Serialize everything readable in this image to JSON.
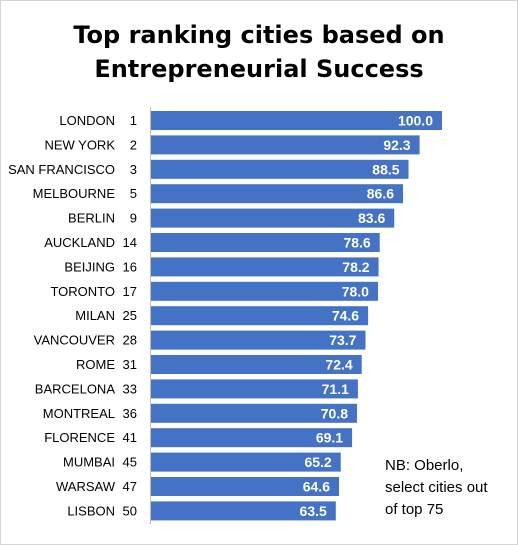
{
  "chart_data": {
    "type": "bar",
    "orientation": "horizontal",
    "title_lines": [
      "Top ranking cities based on",
      "Entrepreneurial Success"
    ],
    "categories": [
      "LONDON",
      "NEW YORK",
      "SAN FRANCISCO",
      "MELBOURNE",
      "BERLIN",
      "AUCKLAND",
      "BEIJING",
      "TORONTO",
      "MILAN",
      "VANCOUVER",
      "ROME",
      "BARCELONA",
      "MONTREAL",
      "FLORENCE",
      "MUMBAI",
      "WARSAW",
      "LISBON"
    ],
    "ranks": [
      "1",
      "2",
      "3",
      "5",
      "9",
      "14",
      "16",
      "17",
      "25",
      "28",
      "31",
      "33",
      "36",
      "41",
      "45",
      "47",
      "50"
    ],
    "values": [
      100.0,
      92.3,
      88.5,
      86.6,
      83.6,
      78.6,
      78.2,
      78.0,
      74.6,
      73.7,
      72.4,
      71.1,
      70.8,
      69.1,
      65.2,
      64.6,
      63.5
    ],
    "value_labels": [
      "100.0",
      "92.3",
      "88.5",
      "86.6",
      "83.6",
      "78.6",
      "78.2",
      "78.0",
      "74.6",
      "73.7",
      "72.4",
      "71.1",
      "70.8",
      "69.1",
      "65.2",
      "64.6",
      "63.5"
    ],
    "xlim": [
      0,
      100
    ],
    "bar_color": "#4472c4",
    "axis_color": "#bfbfbf",
    "grid": false,
    "legend": "none",
    "xlabel": "",
    "ylabel": ""
  },
  "note_lines": [
    "NB: Oberlo,",
    "select cities out",
    "of top 75"
  ]
}
